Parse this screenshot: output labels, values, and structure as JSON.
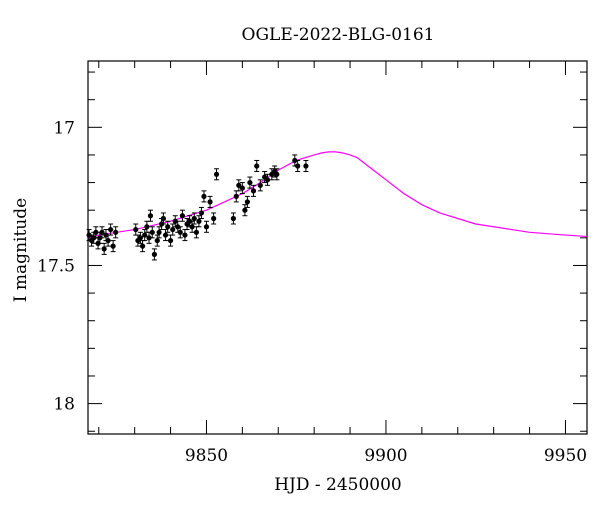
{
  "chart_data": {
    "type": "scatter",
    "title": "OGLE-2022-BLG-0161",
    "xlabel": "HJD - 2450000",
    "ylabel": "I magnitude",
    "xlim": [
      9817,
      9956
    ],
    "ylim": [
      18.11,
      16.76
    ],
    "y_inverted": true,
    "x_ticks": [
      9850,
      9900,
      9950
    ],
    "y_ticks": [
      17,
      17.5,
      18
    ],
    "x_tick_labels": [
      "9850",
      "9900",
      "9950"
    ],
    "y_tick_labels": [
      "17",
      "17.5",
      "18"
    ],
    "grid": false,
    "colors": {
      "points": "#000000",
      "model": "#ff00ff",
      "axes": "#000000"
    },
    "series": [
      {
        "kind": "points",
        "x": [
          9817.3,
          9818.0,
          9818.6,
          9819.2,
          9819.8,
          9820.3,
          9820.9,
          9821.5,
          9822.0,
          9822.6,
          9823.3,
          9824.0,
          9824.7,
          9830.3,
          9830.9,
          9831.6,
          9832.2,
          9832.8,
          9833.4,
          9834.0,
          9834.4,
          9834.9,
          9835.5,
          9836.3,
          9836.8,
          9837.5,
          9838.0,
          9838.6,
          9839.2,
          9840.0,
          9840.6,
          9841.3,
          9842.0,
          9842.7,
          9843.3,
          9844.0,
          9844.6,
          9845.3,
          9846.0,
          9846.6,
          9847.2,
          9847.9,
          9848.6,
          9849.3,
          9850.0,
          9851.0,
          9852.0,
          9852.8,
          9857.5,
          9858.3,
          9859.0,
          9860.0,
          9860.7,
          9861.4,
          9862.1,
          9863.1,
          9864.0,
          9865.0,
          9866.2,
          9867.0,
          9868.2,
          9869.0,
          9869.6,
          9874.6,
          9875.4,
          9877.7
        ],
        "y": [
          17.39,
          17.41,
          17.4,
          17.38,
          17.42,
          17.4,
          17.38,
          17.44,
          17.39,
          17.41,
          17.37,
          17.43,
          17.38,
          17.37,
          17.41,
          17.4,
          17.43,
          17.39,
          17.36,
          17.4,
          17.32,
          17.38,
          17.46,
          17.41,
          17.38,
          17.35,
          17.33,
          17.39,
          17.36,
          17.41,
          17.37,
          17.34,
          17.36,
          17.38,
          17.32,
          17.39,
          17.35,
          17.34,
          17.36,
          17.33,
          17.38,
          17.34,
          17.31,
          17.25,
          17.36,
          17.27,
          17.33,
          17.17,
          17.33,
          17.25,
          17.21,
          17.22,
          17.3,
          17.27,
          17.2,
          17.23,
          17.14,
          17.21,
          17.18,
          17.19,
          17.17,
          17.16,
          17.17,
          17.12,
          17.14,
          17.14
        ],
        "err": [
          0.02,
          0.02,
          0.02,
          0.02,
          0.02,
          0.02,
          0.02,
          0.02,
          0.02,
          0.02,
          0.02,
          0.02,
          0.02,
          0.02,
          0.02,
          0.02,
          0.02,
          0.02,
          0.02,
          0.02,
          0.02,
          0.02,
          0.02,
          0.02,
          0.02,
          0.02,
          0.02,
          0.02,
          0.02,
          0.02,
          0.02,
          0.02,
          0.02,
          0.02,
          0.02,
          0.02,
          0.02,
          0.02,
          0.02,
          0.02,
          0.02,
          0.02,
          0.02,
          0.02,
          0.02,
          0.02,
          0.02,
          0.02,
          0.02,
          0.02,
          0.02,
          0.02,
          0.02,
          0.02,
          0.02,
          0.02,
          0.02,
          0.02,
          0.02,
          0.02,
          0.02,
          0.02,
          0.02,
          0.02,
          0.02,
          0.02
        ]
      },
      {
        "kind": "model",
        "x": [
          9817,
          9820,
          9825,
          9830,
          9835,
          9840,
          9845,
          9850,
          9855,
          9860,
          9865,
          9870,
          9875,
          9880,
          9882,
          9884,
          9886,
          9888,
          9890,
          9892,
          9895,
          9900,
          9905,
          9910,
          9915,
          9920,
          9925,
          9930,
          9935,
          9940,
          9945,
          9950,
          9956
        ],
        "y": [
          17.4,
          17.39,
          17.38,
          17.37,
          17.355,
          17.34,
          17.32,
          17.3,
          17.27,
          17.24,
          17.2,
          17.155,
          17.12,
          17.1,
          17.093,
          17.089,
          17.089,
          17.093,
          17.1,
          17.11,
          17.14,
          17.19,
          17.24,
          17.28,
          17.31,
          17.33,
          17.35,
          17.36,
          17.37,
          17.38,
          17.385,
          17.39,
          17.395
        ]
      }
    ]
  }
}
